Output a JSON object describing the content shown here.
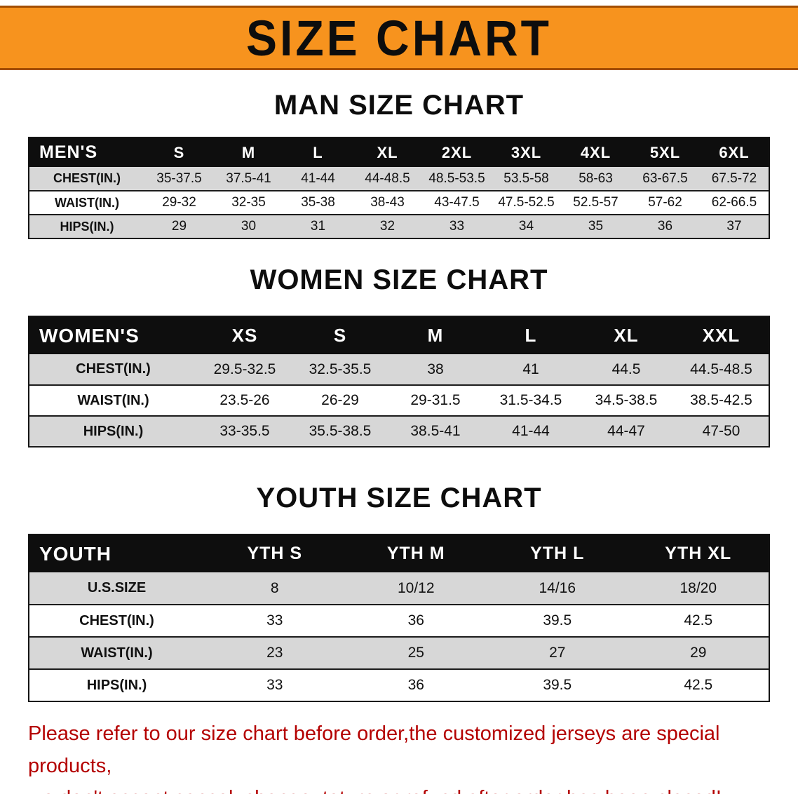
{
  "banner": {
    "title": "SIZE CHART"
  },
  "man": {
    "heading": "MAN SIZE CHART",
    "table": {
      "corner": "MEN'S",
      "sizes": [
        "S",
        "M",
        "L",
        "XL",
        "2XL",
        "3XL",
        "4XL",
        "5XL",
        "6XL"
      ],
      "rows": [
        {
          "label": "CHEST(IN.)",
          "values": [
            "35-37.5",
            "37.5-41",
            "41-44",
            "44-48.5",
            "48.5-53.5",
            "53.5-58",
            "58-63",
            "63-67.5",
            "67.5-72"
          ]
        },
        {
          "label": "WAIST(IN.)",
          "values": [
            "29-32",
            "32-35",
            "35-38",
            "38-43",
            "43-47.5",
            "47.5-52.5",
            "52.5-57",
            "57-62",
            "62-66.5"
          ]
        },
        {
          "label": "HIPS(IN.)",
          "values": [
            "29",
            "30",
            "31",
            "32",
            "33",
            "34",
            "35",
            "36",
            "37"
          ]
        }
      ]
    }
  },
  "women": {
    "heading": "WOMEN SIZE CHART",
    "table": {
      "corner": "WOMEN'S",
      "sizes": [
        "XS",
        "S",
        "M",
        "L",
        "XL",
        "XXL"
      ],
      "rows": [
        {
          "label": "CHEST(IN.)",
          "values": [
            "29.5-32.5",
            "32.5-35.5",
            "38",
            "41",
            "44.5",
            "44.5-48.5"
          ]
        },
        {
          "label": "WAIST(IN.)",
          "values": [
            "23.5-26",
            "26-29",
            "29-31.5",
            "31.5-34.5",
            "34.5-38.5",
            "38.5-42.5"
          ]
        },
        {
          "label": "HIPS(IN.)",
          "values": [
            "33-35.5",
            "35.5-38.5",
            "38.5-41",
            "41-44",
            "44-47",
            "47-50"
          ]
        }
      ]
    }
  },
  "youth": {
    "heading": "YOUTH SIZE CHART",
    "table": {
      "corner": "YOUTH",
      "sizes": [
        "YTH S",
        "YTH M",
        "YTH L",
        "YTH XL"
      ],
      "rows": [
        {
          "label": "U.S.SIZE",
          "values": [
            "8",
            "10/12",
            "14/16",
            "18/20"
          ]
        },
        {
          "label": "CHEST(IN.)",
          "values": [
            "33",
            "36",
            "39.5",
            "42.5"
          ]
        },
        {
          "label": "WAIST(IN.)",
          "values": [
            "23",
            "25",
            "27",
            "29"
          ]
        },
        {
          "label": "HIPS(IN.)",
          "values": [
            "33",
            "36",
            "39.5",
            "42.5"
          ]
        }
      ]
    }
  },
  "disclaimer": {
    "line1": "Please refer to our size chart before order,the customized jerseys are special products,",
    "line2": "we don't accept cancel, change, teturn or refund after order has been placed!"
  },
  "colors": {
    "banner_orange": "#f7931e",
    "banner_edge": "#a34e00",
    "header_black": "#0e0e0e",
    "stripe_gray": "#d7d7d7",
    "disclaimer_red": "#b40000"
  }
}
